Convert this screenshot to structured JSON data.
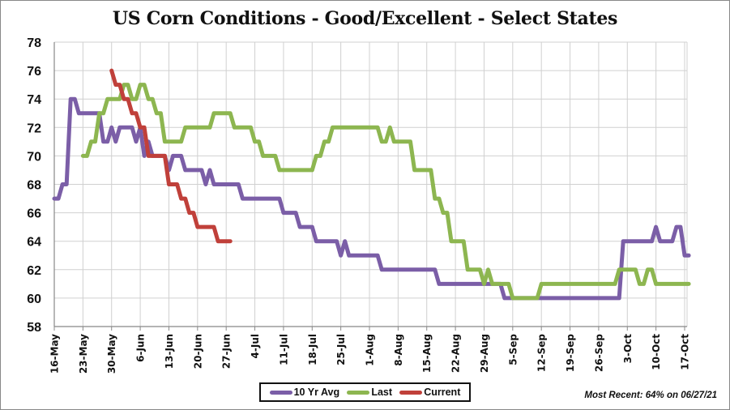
{
  "chart_data": {
    "type": "line",
    "title": "US Corn Conditions - Good/Excellent - Select States",
    "xlabel": "",
    "ylabel": "",
    "ylim": [
      58,
      78
    ],
    "yticks": [
      "58",
      "60",
      "62",
      "64",
      "66",
      "68",
      "70",
      "72",
      "74",
      "76",
      "78"
    ],
    "x_unit": "days since 16-May",
    "xlim": [
      0,
      155
    ],
    "xticks": [
      "16-May",
      "23-May",
      "30-May",
      "6-Jun",
      "13-Jun",
      "20-Jun",
      "27-Jun",
      "4-Jul",
      "11-Jul",
      "18-Jul",
      "25-Jul",
      "1-Aug",
      "8-Aug",
      "15-Aug",
      "22-Aug",
      "29-Aug",
      "5-Sep",
      "12-Sep",
      "19-Sep",
      "26-Sep",
      "3-Oct",
      "10-Oct",
      "17-Oct"
    ],
    "grid": true,
    "legend_position": "bottom",
    "series": [
      {
        "name": "10 Yr Avg",
        "color": "#7B5EA7",
        "points": [
          [
            0,
            67
          ],
          [
            1,
            67
          ],
          [
            2,
            68
          ],
          [
            3,
            68
          ],
          [
            4,
            74
          ],
          [
            5,
            74
          ],
          [
            6,
            73
          ],
          [
            11,
            73
          ],
          [
            12,
            71
          ],
          [
            13,
            71
          ],
          [
            14,
            72
          ],
          [
            15,
            71
          ],
          [
            16,
            72
          ],
          [
            19,
            72
          ],
          [
            20,
            71
          ],
          [
            21,
            72
          ],
          [
            22,
            70
          ],
          [
            23,
            71
          ],
          [
            24,
            70
          ],
          [
            27,
            70
          ],
          [
            28,
            69
          ],
          [
            29,
            70
          ],
          [
            31,
            70
          ],
          [
            32,
            69
          ],
          [
            36,
            69
          ],
          [
            37,
            68
          ],
          [
            38,
            69
          ],
          [
            39,
            68
          ],
          [
            45,
            68
          ],
          [
            46,
            67
          ],
          [
            55,
            67
          ],
          [
            56,
            66
          ],
          [
            59,
            66
          ],
          [
            60,
            65
          ],
          [
            63,
            65
          ],
          [
            64,
            64
          ],
          [
            69,
            64
          ],
          [
            70,
            63
          ],
          [
            71,
            64
          ],
          [
            72,
            63
          ],
          [
            79,
            63
          ],
          [
            80,
            62
          ],
          [
            93,
            62
          ],
          [
            94,
            61
          ],
          [
            109,
            61
          ],
          [
            110,
            60
          ],
          [
            138,
            60
          ],
          [
            139,
            64
          ],
          [
            146,
            64
          ],
          [
            147,
            65
          ],
          [
            148,
            64
          ],
          [
            151,
            64
          ],
          [
            152,
            65
          ],
          [
            153,
            65
          ],
          [
            154,
            63
          ],
          [
            155,
            63
          ]
        ]
      },
      {
        "name": "Last",
        "color": "#8DB650",
        "points": [
          [
            7,
            70
          ],
          [
            8,
            70
          ],
          [
            9,
            71
          ],
          [
            10,
            71
          ],
          [
            11,
            73
          ],
          [
            12,
            73
          ],
          [
            13,
            74
          ],
          [
            16,
            74
          ],
          [
            17,
            75
          ],
          [
            18,
            75
          ],
          [
            19,
            74
          ],
          [
            20,
            74
          ],
          [
            21,
            75
          ],
          [
            22,
            75
          ],
          [
            23,
            74
          ],
          [
            24,
            74
          ],
          [
            25,
            73
          ],
          [
            26,
            73
          ],
          [
            27,
            71
          ],
          [
            31,
            71
          ],
          [
            32,
            72
          ],
          [
            38,
            72
          ],
          [
            39,
            73
          ],
          [
            43,
            73
          ],
          [
            44,
            72
          ],
          [
            48,
            72
          ],
          [
            49,
            71
          ],
          [
            50,
            71
          ],
          [
            51,
            70
          ],
          [
            54,
            70
          ],
          [
            55,
            69
          ],
          [
            63,
            69
          ],
          [
            64,
            70
          ],
          [
            65,
            70
          ],
          [
            66,
            71
          ],
          [
            67,
            71
          ],
          [
            68,
            72
          ],
          [
            79,
            72
          ],
          [
            80,
            71
          ],
          [
            81,
            71
          ],
          [
            82,
            72
          ],
          [
            83,
            71
          ],
          [
            87,
            71
          ],
          [
            88,
            69
          ],
          [
            92,
            69
          ],
          [
            93,
            67
          ],
          [
            94,
            67
          ],
          [
            95,
            66
          ],
          [
            96,
            66
          ],
          [
            97,
            64
          ],
          [
            100,
            64
          ],
          [
            101,
            62
          ],
          [
            104,
            62
          ],
          [
            105,
            61
          ],
          [
            106,
            62
          ],
          [
            107,
            61
          ],
          [
            111,
            61
          ],
          [
            112,
            60
          ],
          [
            118,
            60
          ],
          [
            119,
            61
          ],
          [
            137,
            61
          ],
          [
            138,
            62
          ],
          [
            142,
            62
          ],
          [
            143,
            61
          ],
          [
            144,
            61
          ],
          [
            145,
            62
          ],
          [
            146,
            62
          ],
          [
            147,
            61
          ],
          [
            155,
            61
          ]
        ]
      },
      {
        "name": "Current",
        "color": "#C0403A",
        "points": [
          [
            14,
            76
          ],
          [
            15,
            75
          ],
          [
            16,
            75
          ],
          [
            17,
            74
          ],
          [
            18,
            74
          ],
          [
            19,
            73
          ],
          [
            20,
            73
          ],
          [
            21,
            72
          ],
          [
            22,
            72
          ],
          [
            23,
            70
          ],
          [
            27,
            70
          ],
          [
            28,
            68
          ],
          [
            30,
            68
          ],
          [
            31,
            67
          ],
          [
            32,
            67
          ],
          [
            33,
            66
          ],
          [
            34,
            66
          ],
          [
            35,
            65
          ],
          [
            39,
            65
          ],
          [
            40,
            64
          ],
          [
            43,
            64
          ]
        ]
      }
    ]
  },
  "footer": {
    "most_recent_note": "Most Recent: 64% on 06/27/21"
  }
}
